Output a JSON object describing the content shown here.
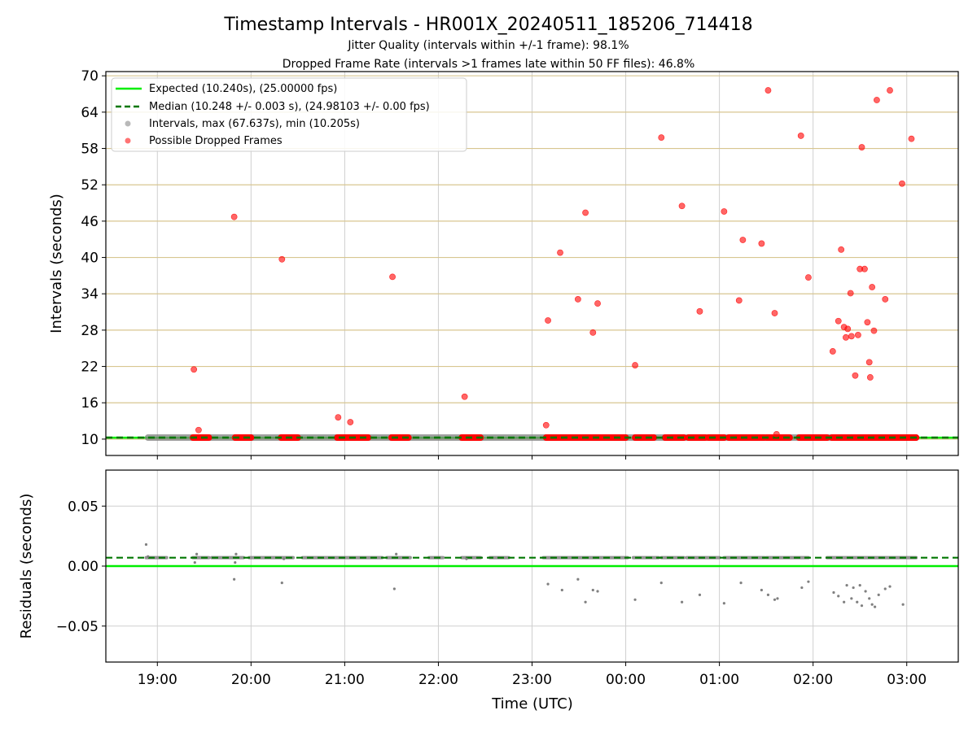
{
  "chart_data": [
    {
      "type": "scatter",
      "title": "Timestamp Intervals - HR001X_20240511_185206_714418",
      "subtitle_lines": [
        "Jitter Quality (intervals within +/-1 frame): 98.1%",
        "Dropped Frame Rate (intervals >1 frames late within 50 FF files): 46.8%"
      ],
      "xlabel": "",
      "ylabel": "Intervals (seconds)",
      "x_unit": "hours after 19:00 UTC",
      "xlim": [
        -0.55,
        8.55
      ],
      "ylim": [
        7.3,
        70.7
      ],
      "yticks": [
        10,
        16,
        22,
        28,
        34,
        40,
        46,
        52,
        58,
        64,
        70
      ],
      "ytick_labels": [
        "10",
        "16",
        "22",
        "28",
        "34",
        "40",
        "46",
        "52",
        "58",
        "64",
        "70"
      ],
      "grid": "horizontal goldenrod lines at y ticks, vertical gray lines at x ticks",
      "legend_position": "top-left",
      "legend": [
        "Expected (10.240s), (25.00000 fps)",
        "Median (10.248 +/- 0.003 s), (24.98103 +/- 0.00 fps)",
        "Intervals, max (67.637s), min (10.205s)",
        "Possible Dropped Frames"
      ],
      "expected_interval": 10.24,
      "median_interval": 10.248,
      "baseline_interval_span": [
        -0.1,
        8.1
      ],
      "dropped_baseline_segments": [
        [
          0.38,
          0.55
        ],
        [
          0.83,
          1.0
        ],
        [
          1.32,
          1.5
        ],
        [
          1.92,
          2.25
        ],
        [
          2.5,
          2.68
        ],
        [
          3.25,
          3.45
        ],
        [
          4.15,
          5.0
        ],
        [
          5.1,
          5.3
        ],
        [
          5.42,
          5.62
        ],
        [
          5.67,
          5.85
        ],
        [
          5.88,
          6.05
        ],
        [
          6.1,
          6.48
        ],
        [
          6.5,
          6.75
        ],
        [
          6.85,
          7.15
        ],
        [
          7.2,
          8.1
        ]
      ],
      "dropped_points": [
        {
          "x": 0.39,
          "y": 21.5
        },
        {
          "x": 0.44,
          "y": 11.5
        },
        {
          "x": 0.82,
          "y": 46.7
        },
        {
          "x": 1.33,
          "y": 39.7
        },
        {
          "x": 1.93,
          "y": 13.6
        },
        {
          "x": 2.06,
          "y": 12.8
        },
        {
          "x": 2.51,
          "y": 36.8
        },
        {
          "x": 3.28,
          "y": 17.0
        },
        {
          "x": 4.15,
          "y": 12.3
        },
        {
          "x": 4.17,
          "y": 29.6
        },
        {
          "x": 4.3,
          "y": 40.8
        },
        {
          "x": 4.49,
          "y": 33.1
        },
        {
          "x": 4.57,
          "y": 47.4
        },
        {
          "x": 4.65,
          "y": 27.6
        },
        {
          "x": 4.7,
          "y": 32.4
        },
        {
          "x": 5.1,
          "y": 22.2
        },
        {
          "x": 5.38,
          "y": 59.8
        },
        {
          "x": 5.6,
          "y": 48.5
        },
        {
          "x": 5.79,
          "y": 31.1
        },
        {
          "x": 6.05,
          "y": 47.6
        },
        {
          "x": 6.21,
          "y": 32.9
        },
        {
          "x": 6.25,
          "y": 42.9
        },
        {
          "x": 6.45,
          "y": 42.3
        },
        {
          "x": 6.52,
          "y": 67.6
        },
        {
          "x": 6.59,
          "y": 30.8
        },
        {
          "x": 6.61,
          "y": 10.8
        },
        {
          "x": 6.87,
          "y": 60.1
        },
        {
          "x": 6.95,
          "y": 36.7
        },
        {
          "x": 7.21,
          "y": 24.5
        },
        {
          "x": 7.27,
          "y": 29.5
        },
        {
          "x": 7.3,
          "y": 41.3
        },
        {
          "x": 7.33,
          "y": 28.5
        },
        {
          "x": 7.35,
          "y": 26.8
        },
        {
          "x": 7.37,
          "y": 28.2
        },
        {
          "x": 7.4,
          "y": 34.1
        },
        {
          "x": 7.41,
          "y": 27.0
        },
        {
          "x": 7.45,
          "y": 20.5
        },
        {
          "x": 7.48,
          "y": 27.2
        },
        {
          "x": 7.5,
          "y": 38.1
        },
        {
          "x": 7.52,
          "y": 58.2
        },
        {
          "x": 7.55,
          "y": 38.1
        },
        {
          "x": 7.58,
          "y": 29.3
        },
        {
          "x": 7.6,
          "y": 22.7
        },
        {
          "x": 7.61,
          "y": 20.2
        },
        {
          "x": 7.63,
          "y": 35.1
        },
        {
          "x": 7.65,
          "y": 27.9
        },
        {
          "x": 7.68,
          "y": 66.0
        },
        {
          "x": 7.77,
          "y": 33.1
        },
        {
          "x": 7.82,
          "y": 67.6
        },
        {
          "x": 7.95,
          "y": 52.2
        },
        {
          "x": 8.05,
          "y": 59.6
        }
      ]
    },
    {
      "type": "scatter",
      "xlabel": "Time (UTC)",
      "ylabel": "Residuals (seconds)",
      "x_unit": "hours after 19:00 UTC",
      "xlim": [
        -0.55,
        8.55
      ],
      "ylim": [
        -0.08,
        0.08
      ],
      "yticks": [
        -0.05,
        0.0,
        0.05
      ],
      "ytick_labels": [
        "−0.05",
        "0.00",
        "0.05"
      ],
      "xticks": [
        0,
        1,
        2,
        3,
        4,
        5,
        6,
        7,
        8
      ],
      "xtick_labels": [
        "19:00",
        "20:00",
        "21:00",
        "22:00",
        "23:00",
        "00:00",
        "01:00",
        "02:00",
        "03:00"
      ],
      "grid": "gray lines at x and y ticks",
      "expected_residual": 0.0,
      "median_residual": 0.007,
      "residual_band_segments": [
        [
          -0.12,
          0.1
        ],
        [
          0.38,
          0.55
        ],
        [
          0.58,
          0.92
        ],
        [
          0.98,
          1.45
        ],
        [
          1.55,
          2.4
        ],
        [
          2.45,
          2.7
        ],
        [
          2.9,
          3.05
        ],
        [
          3.25,
          3.45
        ],
        [
          3.55,
          3.75
        ],
        [
          4.12,
          5.02
        ],
        [
          5.08,
          5.35
        ],
        [
          5.38,
          5.62
        ],
        [
          5.65,
          6.0
        ],
        [
          6.05,
          6.48
        ],
        [
          6.5,
          6.95
        ],
        [
          7.15,
          8.1
        ]
      ],
      "residual_points": [
        {
          "x": -0.12,
          "y": 0.018
        },
        {
          "x": -0.1,
          "y": 0.008
        },
        {
          "x": 0.4,
          "y": 0.003
        },
        {
          "x": 0.42,
          "y": 0.01
        },
        {
          "x": 0.82,
          "y": -0.011
        },
        {
          "x": 0.83,
          "y": 0.003
        },
        {
          "x": 0.84,
          "y": 0.01
        },
        {
          "x": 1.33,
          "y": -0.014
        },
        {
          "x": 1.35,
          "y": 0.006
        },
        {
          "x": 2.53,
          "y": -0.019
        },
        {
          "x": 2.55,
          "y": 0.01
        },
        {
          "x": 3.3,
          "y": 0.006
        },
        {
          "x": 4.17,
          "y": -0.015
        },
        {
          "x": 4.32,
          "y": -0.02
        },
        {
          "x": 4.49,
          "y": -0.011
        },
        {
          "x": 4.57,
          "y": -0.03
        },
        {
          "x": 4.65,
          "y": -0.02
        },
        {
          "x": 4.7,
          "y": -0.021
        },
        {
          "x": 5.1,
          "y": -0.028
        },
        {
          "x": 5.38,
          "y": -0.014
        },
        {
          "x": 5.6,
          "y": -0.03
        },
        {
          "x": 5.79,
          "y": -0.024
        },
        {
          "x": 6.05,
          "y": -0.031
        },
        {
          "x": 6.23,
          "y": -0.014
        },
        {
          "x": 6.45,
          "y": -0.02
        },
        {
          "x": 6.52,
          "y": -0.024
        },
        {
          "x": 6.59,
          "y": -0.028
        },
        {
          "x": 6.62,
          "y": -0.027
        },
        {
          "x": 6.88,
          "y": -0.018
        },
        {
          "x": 6.95,
          "y": -0.013
        },
        {
          "x": 7.22,
          "y": -0.022
        },
        {
          "x": 7.27,
          "y": -0.025
        },
        {
          "x": 7.33,
          "y": -0.03
        },
        {
          "x": 7.36,
          "y": -0.016
        },
        {
          "x": 7.41,
          "y": -0.027
        },
        {
          "x": 7.43,
          "y": -0.018
        },
        {
          "x": 7.47,
          "y": -0.03
        },
        {
          "x": 7.5,
          "y": -0.016
        },
        {
          "x": 7.52,
          "y": -0.033
        },
        {
          "x": 7.56,
          "y": -0.021
        },
        {
          "x": 7.6,
          "y": -0.027
        },
        {
          "x": 7.63,
          "y": -0.032
        },
        {
          "x": 7.66,
          "y": -0.034
        },
        {
          "x": 7.7,
          "y": -0.024
        },
        {
          "x": 7.77,
          "y": -0.019
        },
        {
          "x": 7.82,
          "y": -0.017
        },
        {
          "x": 7.96,
          "y": -0.032
        }
      ]
    }
  ],
  "colors": {
    "expected": "#00ee00",
    "median": "#007700",
    "intervals": "#808080",
    "dropped": "#ff0000",
    "hgrid_top": "#d8c690",
    "vgrid": "#cfcfcf"
  }
}
